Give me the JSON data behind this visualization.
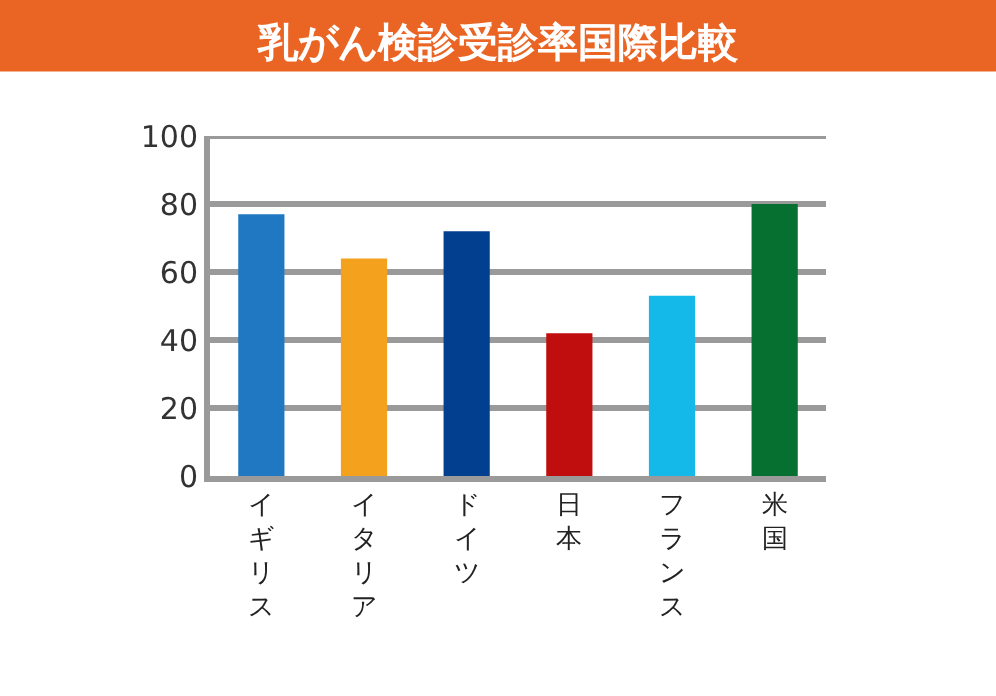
{
  "chart_data": {
    "type": "bar",
    "title": "乳がん検診受診率国際比較",
    "categories": [
      "イギリス",
      "イタリア",
      "ドイツ",
      "日本",
      "フランス",
      "米国"
    ],
    "values": [
      77,
      64,
      72,
      42,
      53,
      80
    ],
    "colors": [
      "#1f78c1",
      "#f4a11d",
      "#033f8f",
      "#c00d0d",
      "#14b9ea",
      "#05702f"
    ],
    "ylim": [
      0,
      100
    ],
    "yticks": [
      0,
      20,
      40,
      60,
      80,
      100
    ],
    "grid": "y"
  }
}
